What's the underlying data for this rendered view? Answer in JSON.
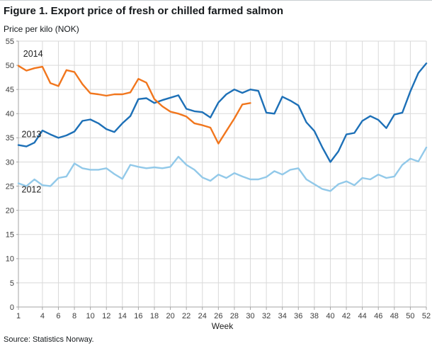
{
  "title": "Figure 1. Export price of fresh or chilled farmed salmon",
  "subtitle": "Price per kilo (NOK)",
  "source": "Source: Statistics Norway.",
  "chart_data": {
    "type": "line",
    "title": "Figure 1. Export price of fresh or chilled farmed salmon",
    "ylabel": "Price per kilo (NOK)",
    "xlabel": "Week",
    "ylim": [
      0,
      55
    ],
    "ytick_step": 5,
    "xlim": [
      1,
      52
    ],
    "xticks": [
      1,
      4,
      6,
      8,
      10,
      12,
      14,
      16,
      18,
      20,
      22,
      24,
      26,
      28,
      30,
      32,
      34,
      36,
      38,
      40,
      42,
      44,
      46,
      48,
      50,
      52
    ],
    "grid": true,
    "legend_position": "inline-labels",
    "colors": {
      "grid": "#d9d9d9",
      "axis": "#a6a6a6"
    },
    "series": [
      {
        "name": "2012",
        "color": "#92c9e9",
        "x_start": 1,
        "label_pos": {
          "week": 1.4,
          "value": 24.3
        },
        "values": [
          25.6,
          25.0,
          26.4,
          25.2,
          25.0,
          26.7,
          27.0,
          29.7,
          28.7,
          28.4,
          28.4,
          28.7,
          27.5,
          26.5,
          29.4,
          29.0,
          28.7,
          28.9,
          28.7,
          29.0,
          31.1,
          29.4,
          28.4,
          26.8,
          26.1,
          27.4,
          26.7,
          27.7,
          27.0,
          26.4,
          26.4,
          26.9,
          28.1,
          27.4,
          28.4,
          28.7,
          26.4,
          25.4,
          24.4,
          24.0,
          25.4,
          26.0,
          25.2,
          26.7,
          26.4,
          27.4,
          26.7,
          27.0,
          29.4,
          30.7,
          30.1,
          33.0
        ]
      },
      {
        "name": "2013",
        "color": "#1d70b7",
        "x_start": 1,
        "label_pos": {
          "week": 1.4,
          "value": 35.8
        },
        "values": [
          33.5,
          33.2,
          34.0,
          36.5,
          35.7,
          35.0,
          35.5,
          36.3,
          38.5,
          38.8,
          38.0,
          36.8,
          36.2,
          38.0,
          39.5,
          43.0,
          43.2,
          42.2,
          42.8,
          43.3,
          43.8,
          41.0,
          40.5,
          40.3,
          39.2,
          42.3,
          44.0,
          45.0,
          44.3,
          45.0,
          44.7,
          40.2,
          40.0,
          43.5,
          42.7,
          41.7,
          38.2,
          36.4,
          33.0,
          30.0,
          32.2,
          35.7,
          36.0,
          38.5,
          39.5,
          38.7,
          37.0,
          39.8,
          40.2,
          44.6,
          48.4,
          50.4
        ]
      },
      {
        "name": "2014",
        "color": "#f1761d",
        "x_start": 1,
        "label_pos": {
          "week": 1.6,
          "value": 52.4
        },
        "values": [
          49.9,
          48.9,
          49.4,
          49.7,
          46.3,
          45.7,
          49.0,
          48.6,
          46.1,
          44.2,
          44.0,
          43.7,
          44.0,
          44.0,
          44.4,
          47.2,
          46.4,
          43.0,
          41.5,
          40.4,
          40.0,
          39.4,
          38.0,
          37.6,
          37.1,
          33.8,
          36.4,
          39.0,
          41.9,
          42.2
        ]
      }
    ]
  }
}
